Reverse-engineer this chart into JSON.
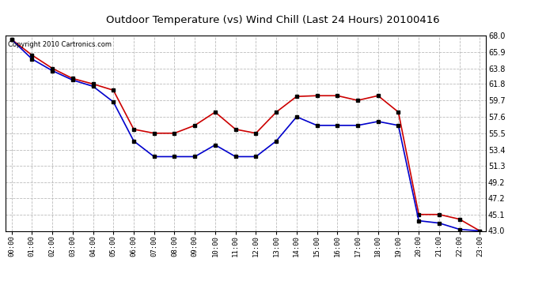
{
  "title": "Outdoor Temperature (vs) Wind Chill (Last 24 Hours) 20100416",
  "copyright": "Copyright 2010 Cartronics.com",
  "hours": [
    0,
    1,
    2,
    3,
    4,
    5,
    6,
    7,
    8,
    9,
    10,
    11,
    12,
    13,
    14,
    15,
    16,
    17,
    18,
    19,
    20,
    21,
    22,
    23
  ],
  "hour_labels": [
    "00:00",
    "01:00",
    "02:00",
    "03:00",
    "04:00",
    "05:00",
    "06:00",
    "07:00",
    "08:00",
    "09:00",
    "10:00",
    "11:00",
    "12:00",
    "13:00",
    "14:00",
    "15:00",
    "16:00",
    "17:00",
    "18:00",
    "19:00",
    "20:00",
    "21:00",
    "22:00",
    "23:00"
  ],
  "temp": [
    67.5,
    65.5,
    63.8,
    62.5,
    61.8,
    61.0,
    56.0,
    55.5,
    55.5,
    56.5,
    58.2,
    56.0,
    55.5,
    58.2,
    60.2,
    60.3,
    60.3,
    59.7,
    60.3,
    58.2,
    45.1,
    45.1,
    44.5,
    43.0
  ],
  "windchill": [
    67.5,
    65.0,
    63.5,
    62.3,
    61.5,
    59.5,
    54.5,
    52.5,
    52.5,
    52.5,
    54.0,
    52.5,
    52.5,
    54.5,
    57.6,
    56.5,
    56.5,
    56.5,
    57.0,
    56.5,
    44.3,
    44.0,
    43.2,
    43.0
  ],
  "temp_color": "#cc0000",
  "windchill_color": "#0000cc",
  "bg_color": "#ffffff",
  "plot_bg_color": "#ffffff",
  "grid_color": "#bbbbbb",
  "ylim_min": 43.0,
  "ylim_max": 68.0,
  "yticks": [
    43.0,
    45.1,
    47.2,
    49.2,
    51.3,
    53.4,
    55.5,
    57.6,
    59.7,
    61.8,
    63.8,
    65.9,
    68.0
  ],
  "marker": "s",
  "marker_color": "#000000",
  "marker_size": 2.5,
  "line_width": 1.2
}
